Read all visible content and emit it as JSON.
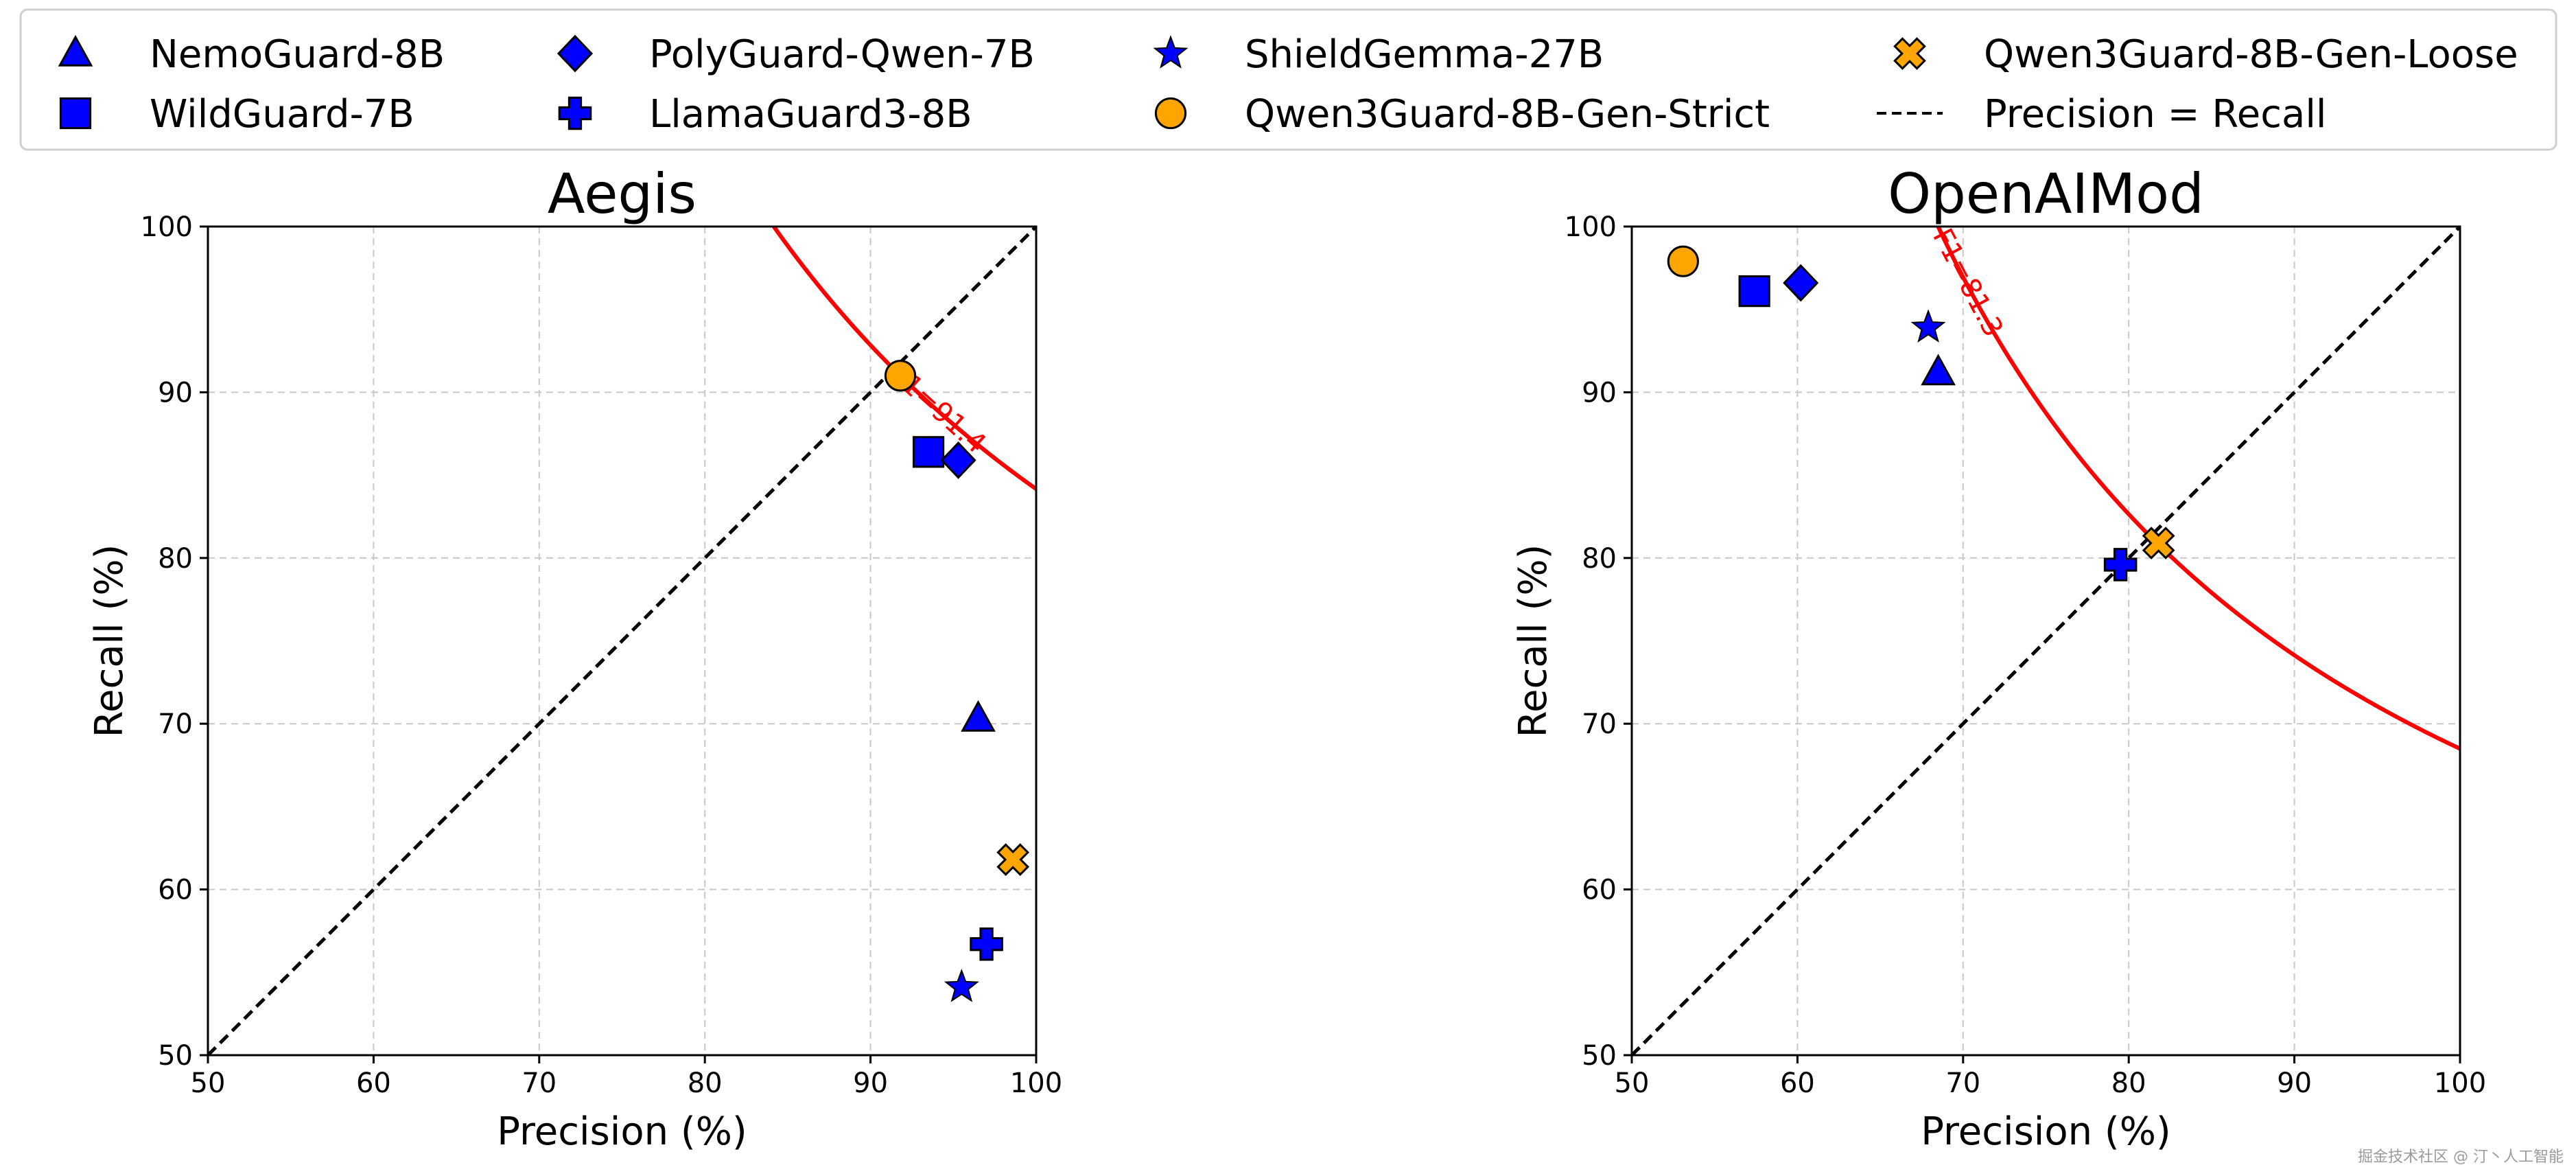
{
  "legend": {
    "location": "top",
    "columns": 4,
    "items": [
      {
        "label": "NemoGuard-8B",
        "marker": "triangle",
        "color": "#0000FF"
      },
      {
        "label": "WildGuard-7B",
        "marker": "square",
        "color": "#0000FF"
      },
      {
        "label": "PolyGuard-Qwen-7B",
        "marker": "diamond",
        "color": "#0000FF"
      },
      {
        "label": "LlamaGuard3-8B",
        "marker": "plus",
        "color": "#0000FF"
      },
      {
        "label": "ShieldGemma-27B",
        "marker": "star",
        "color": "#0000FF"
      },
      {
        "label": "Qwen3Guard-8B-Gen-Strict",
        "marker": "circle",
        "color": "#FFA500"
      },
      {
        "label": "Qwen3Guard-8B-Gen-Loose",
        "marker": "x",
        "color": "#FFA500"
      },
      {
        "label": "Precision = Recall",
        "marker": "dashed-line",
        "color": "#000000"
      }
    ]
  },
  "watermark": "掘金技术社区 @ 汀丶人工智能",
  "chart_data": [
    {
      "type": "scatter",
      "title": "Aegis",
      "xlabel": "Precision (%)",
      "ylabel": "Recall (%)",
      "xlim": [
        50,
        100
      ],
      "ylim": [
        50,
        100
      ],
      "xticks": [
        50,
        60,
        70,
        80,
        90,
        100
      ],
      "yticks": [
        50,
        60,
        70,
        80,
        90,
        100
      ],
      "grid": true,
      "diagonal": {
        "label": "Precision = Recall"
      },
      "f1_curve": {
        "f1": 91.4,
        "label": "F1=91.4",
        "color": "#FF0000"
      },
      "series": [
        {
          "name": "NemoGuard-8B",
          "x": 96.5,
          "y": 70.3
        },
        {
          "name": "WildGuard-7B",
          "x": 93.5,
          "y": 86.4
        },
        {
          "name": "PolyGuard-Qwen-7B",
          "x": 95.3,
          "y": 85.9
        },
        {
          "name": "LlamaGuard3-8B",
          "x": 97.0,
          "y": 56.7
        },
        {
          "name": "ShieldGemma-27B",
          "x": 95.5,
          "y": 54.1
        },
        {
          "name": "Qwen3Guard-8B-Gen-Strict",
          "x": 91.8,
          "y": 91.0
        },
        {
          "name": "Qwen3Guard-8B-Gen-Loose",
          "x": 98.6,
          "y": 61.8
        }
      ]
    },
    {
      "type": "scatter",
      "title": "OpenAIMod",
      "xlabel": "Precision (%)",
      "ylabel": "Recall (%)",
      "xlim": [
        50,
        100
      ],
      "ylim": [
        50,
        100
      ],
      "xticks": [
        50,
        60,
        70,
        80,
        90,
        100
      ],
      "yticks": [
        50,
        60,
        70,
        80,
        90,
        100
      ],
      "grid": true,
      "diagonal": {
        "label": "Precision = Recall"
      },
      "f1_curve": {
        "f1": 81.3,
        "label": "F1=81.3",
        "color": "#FF0000"
      },
      "series": [
        {
          "name": "NemoGuard-8B",
          "x": 68.5,
          "y": 91.2
        },
        {
          "name": "WildGuard-7B",
          "x": 57.4,
          "y": 96.1
        },
        {
          "name": "PolyGuard-Qwen-7B",
          "x": 60.2,
          "y": 96.6
        },
        {
          "name": "LlamaGuard3-8B",
          "x": 79.5,
          "y": 79.6
        },
        {
          "name": "ShieldGemma-27B",
          "x": 67.9,
          "y": 93.9
        },
        {
          "name": "Qwen3Guard-8B-Gen-Strict",
          "x": 53.1,
          "y": 97.9
        },
        {
          "name": "Qwen3Guard-8B-Gen-Loose",
          "x": 81.8,
          "y": 80.9
        }
      ]
    }
  ]
}
